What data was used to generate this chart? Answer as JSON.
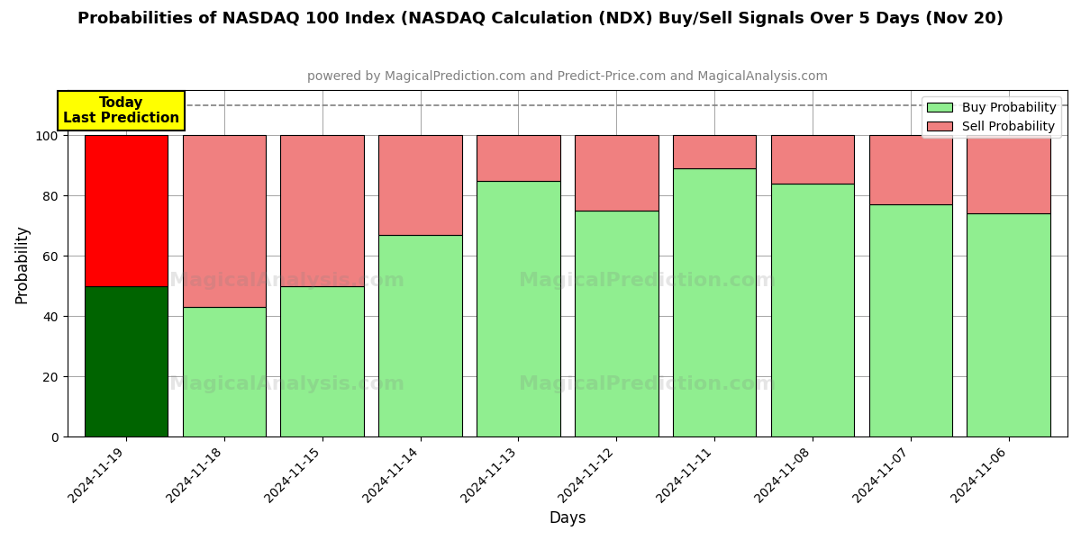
{
  "title": "Probabilities of NASDAQ 100 Index (NASDAQ Calculation (NDX) Buy/Sell Signals Over 5 Days (Nov 20)",
  "subtitle": "powered by MagicalPrediction.com and Predict-Price.com and MagicalAnalysis.com",
  "xlabel": "Days",
  "ylabel": "Probability",
  "dates": [
    "2024-11-19",
    "2024-11-18",
    "2024-11-15",
    "2024-11-14",
    "2024-11-13",
    "2024-11-12",
    "2024-11-11",
    "2024-11-08",
    "2024-11-07",
    "2024-11-06"
  ],
  "buy_values": [
    50,
    43,
    50,
    67,
    85,
    75,
    89,
    84,
    77,
    74
  ],
  "sell_values": [
    50,
    57,
    50,
    33,
    15,
    25,
    11,
    16,
    23,
    26
  ],
  "today_buy_color": "#006400",
  "today_sell_color": "#FF0000",
  "other_buy_color": "#90EE90",
  "other_sell_color": "#F08080",
  "today_label_bg": "#FFFF00",
  "today_label_text": "Today\nLast Prediction",
  "ylim": [
    0,
    115
  ],
  "yticks": [
    0,
    20,
    40,
    60,
    80,
    100
  ],
  "dashed_line_y": 110,
  "legend_buy_label": "Buy Probability",
  "legend_sell_label": "Sell Probability",
  "bar_width": 0.85,
  "title_fontsize": 13,
  "subtitle_fontsize": 10,
  "axis_label_fontsize": 12,
  "tick_fontsize": 10
}
